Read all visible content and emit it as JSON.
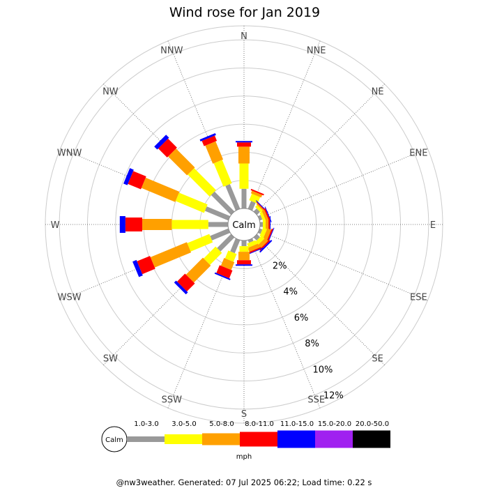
{
  "chart_data": {
    "type": "wind-rose",
    "title": "Wind rose for Jan 2019",
    "center_label": "Calm",
    "directions": [
      "N",
      "NNE",
      "NE",
      "ENE",
      "E",
      "ESE",
      "SE",
      "SSE",
      "S",
      "SSW",
      "SW",
      "WSW",
      "W",
      "WNW",
      "NW",
      "NNW"
    ],
    "radial_ticks": [
      2,
      4,
      6,
      8,
      10,
      12
    ],
    "radial_tick_suffix": "%",
    "rmax_percent": 13,
    "units": "mph",
    "bins": [
      {
        "label": "1.0-3.0",
        "color": "#999999"
      },
      {
        "label": "3.0-5.0",
        "color": "#ffff00"
      },
      {
        "label": "5.0-8.0",
        "color": "#ffa000"
      },
      {
        "label": "8.0-11.0",
        "color": "#ff0000"
      },
      {
        "label": "11.0-15.0",
        "color": "#0000ff"
      },
      {
        "label": "15.0-20.0",
        "color": "#a020f0"
      },
      {
        "label": "20.0-50.0",
        "color": "#000000"
      }
    ],
    "series": [
      {
        "direction": "N",
        "values": [
          1.4,
          1.8,
          1.2,
          0.3,
          0.1,
          0,
          0
        ]
      },
      {
        "direction": "NNE",
        "values": [
          0.6,
          0.5,
          0.2,
          0.1,
          0,
          0,
          0
        ]
      },
      {
        "direction": "NE",
        "values": [
          0.3,
          0.2,
          0.1,
          0.05,
          0.05,
          0,
          0
        ]
      },
      {
        "direction": "ENE",
        "values": [
          0.2,
          0.2,
          0.2,
          0.1,
          0.05,
          0,
          0
        ]
      },
      {
        "direction": "E",
        "values": [
          0.2,
          0.2,
          0.2,
          0.1,
          0.05,
          0,
          0
        ]
      },
      {
        "direction": "ESE",
        "values": [
          0.2,
          0.3,
          0.3,
          0.1,
          0.05,
          0,
          0
        ]
      },
      {
        "direction": "SE",
        "values": [
          0.3,
          0.3,
          0.3,
          0.1,
          0.1,
          0,
          0
        ]
      },
      {
        "direction": "SSE",
        "values": [
          0.2,
          0.3,
          0.3,
          0.1,
          0.05,
          0,
          0
        ]
      },
      {
        "direction": "S",
        "values": [
          0.4,
          0.4,
          0.6,
          0.3,
          0.1,
          0,
          0
        ]
      },
      {
        "direction": "SSW",
        "values": [
          1.0,
          0.6,
          0.6,
          0.6,
          0.1,
          0,
          0
        ]
      },
      {
        "direction": "SW",
        "values": [
          1.4,
          1.2,
          1.7,
          0.8,
          0.2,
          0,
          0
        ]
      },
      {
        "direction": "WSW",
        "values": [
          1.4,
          1.7,
          2.8,
          1.0,
          0.3,
          0,
          0
        ]
      },
      {
        "direction": "W",
        "values": [
          1.4,
          2.6,
          2.1,
          1.2,
          0.4,
          0,
          0
        ]
      },
      {
        "direction": "WNW",
        "values": [
          1.8,
          2.2,
          2.6,
          1.0,
          0.3,
          0,
          0
        ]
      },
      {
        "direction": "NW",
        "values": [
          2.0,
          2.2,
          1.9,
          0.9,
          0.3,
          0,
          0
        ]
      },
      {
        "direction": "NNW",
        "values": [
          1.9,
          1.8,
          1.4,
          0.4,
          0.15,
          0,
          0
        ]
      }
    ]
  },
  "footer": "@nw3weather. Generated: 07 Jul 2025 06:22; Load time: 0.22 s"
}
